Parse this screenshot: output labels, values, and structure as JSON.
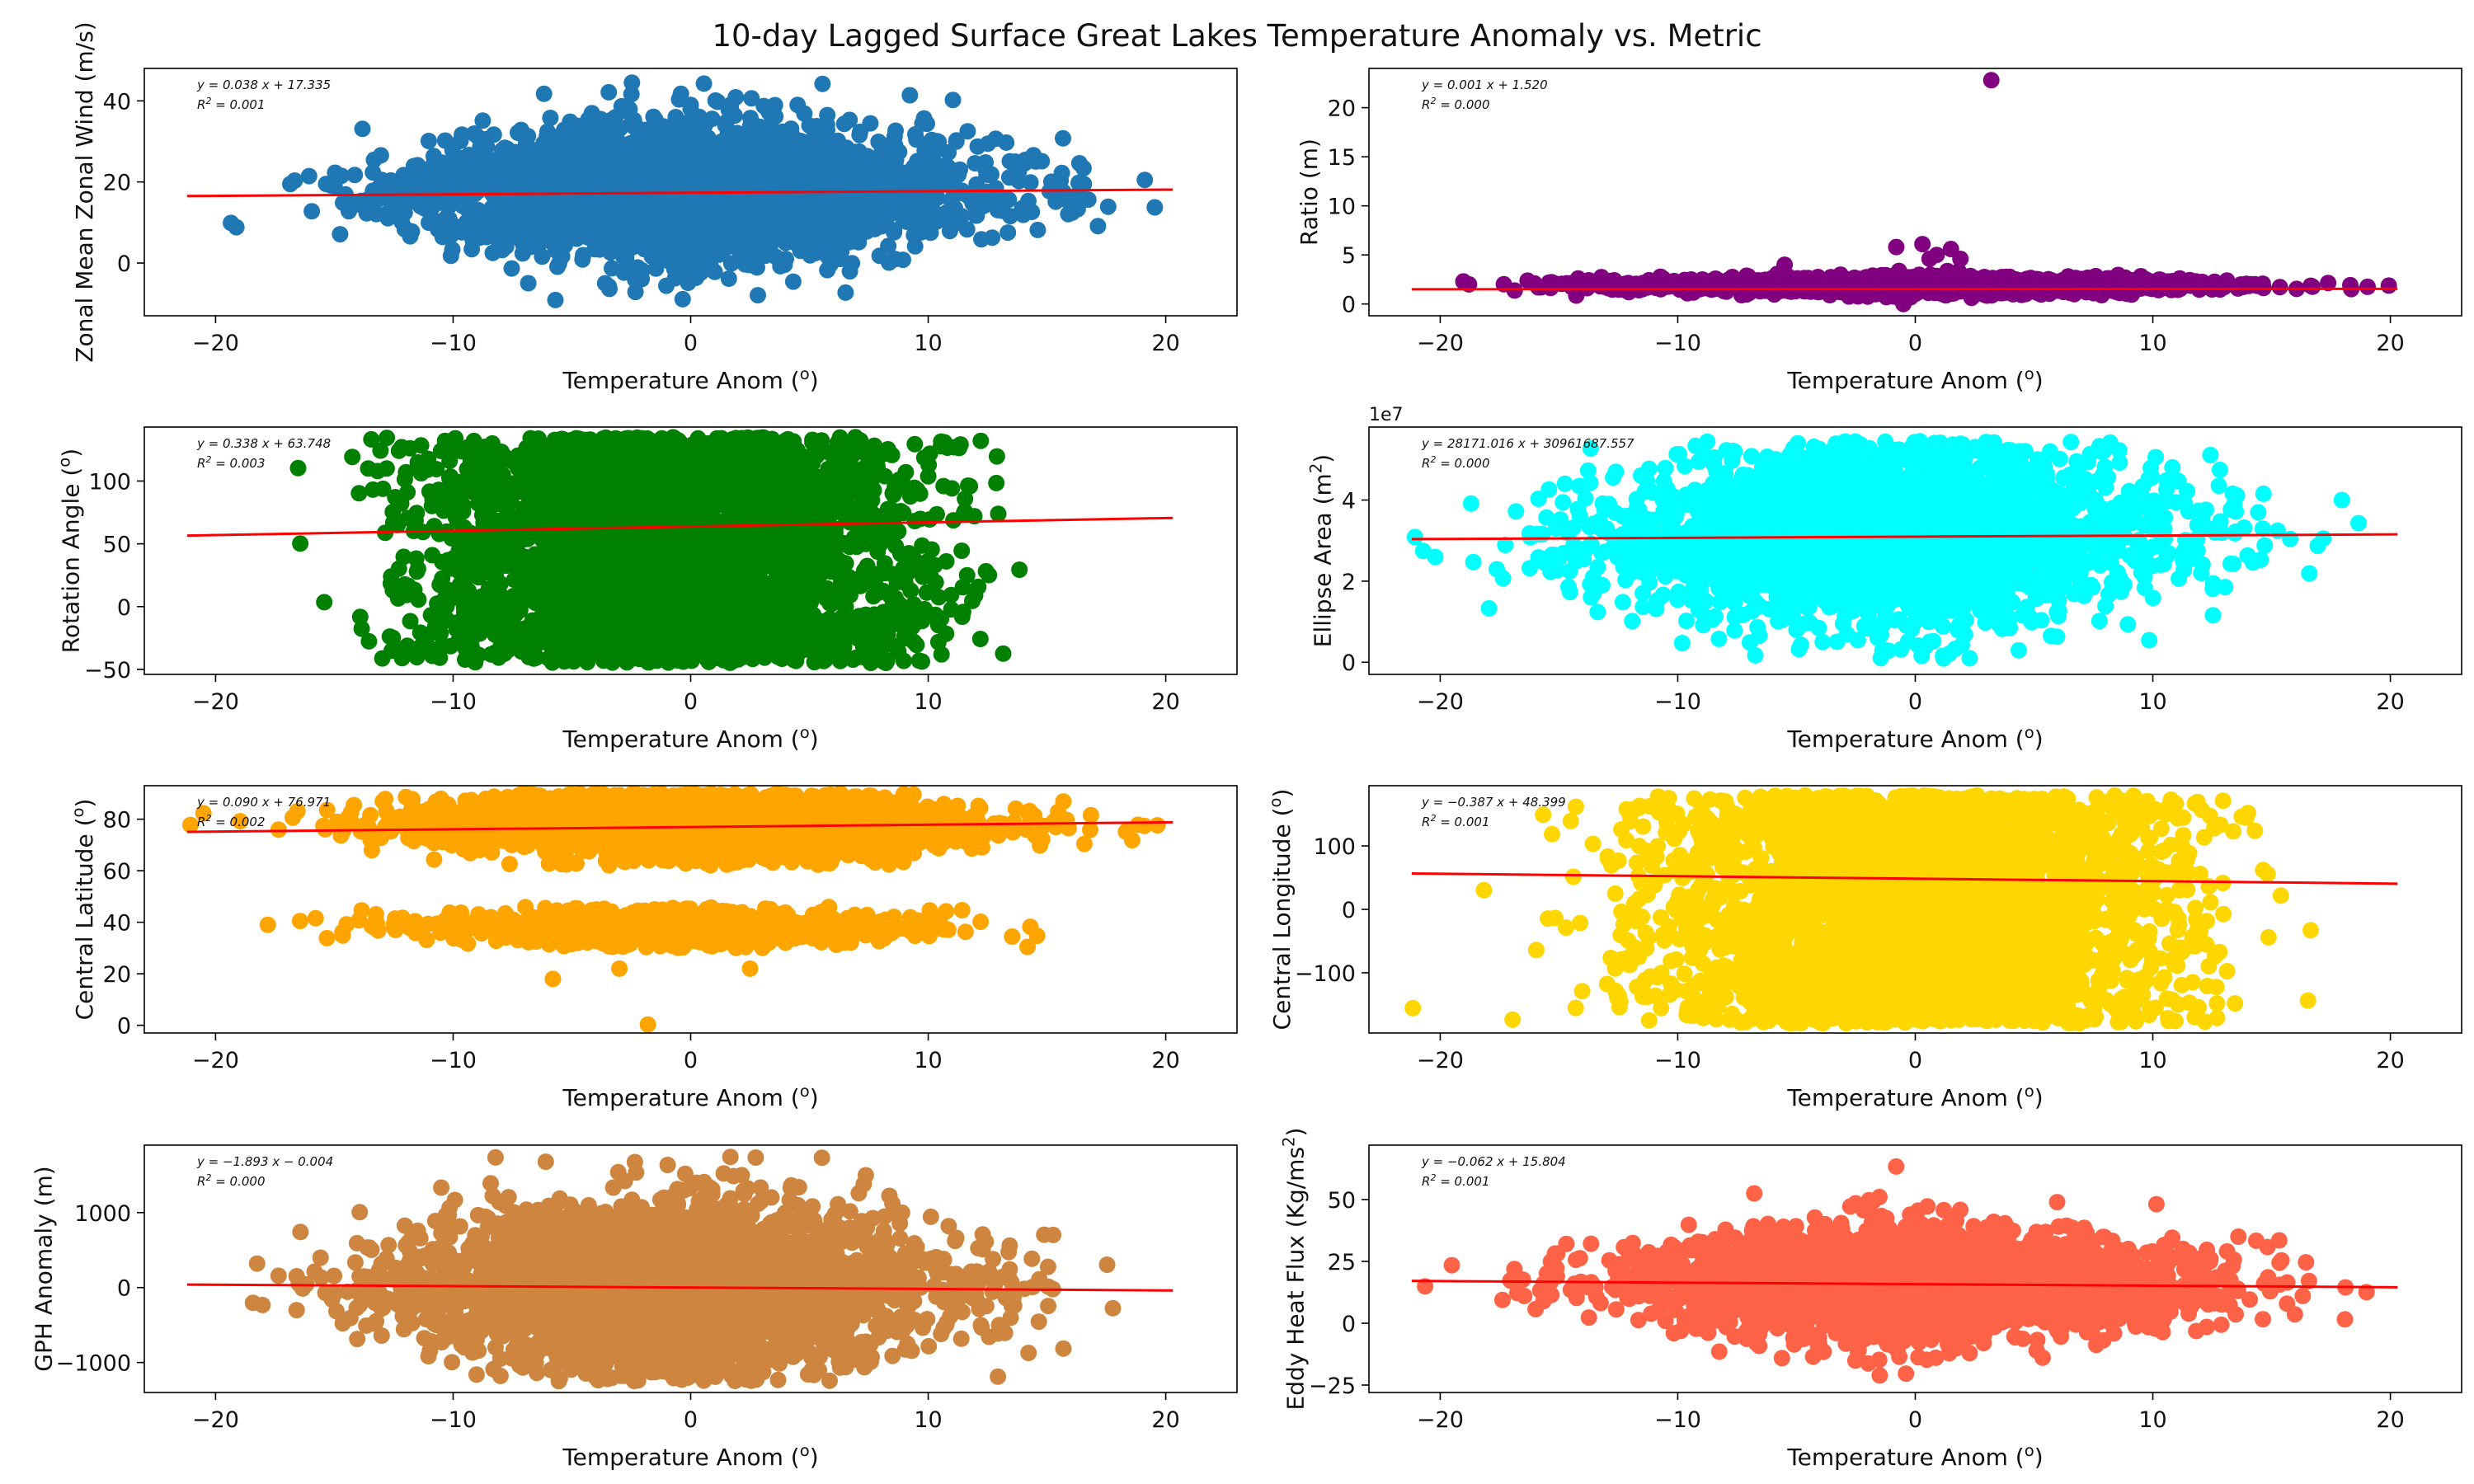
{
  "figure": {
    "title": "10-day Lagged Surface Great Lakes Temperature Anomaly vs. Metric"
  },
  "chart_data": [
    {
      "type": "scatter",
      "xlabel": "Temperature Anom ($^o$)",
      "xlabel_text": "Temperature Anom (",
      "xlabel_sup": "o",
      "xlabel_end": ")",
      "ylabel": "Zonal Mean Zonal Wind (m/s)",
      "xlim": [
        -23,
        23
      ],
      "ylim": [
        -13,
        48
      ],
      "xticks": [
        -20,
        -10,
        0,
        10,
        20
      ],
      "xtick_labels": [
        "−20",
        "−10",
        "0",
        "10",
        "20"
      ],
      "yticks": [
        0,
        20,
        40
      ],
      "ytick_labels": [
        "0",
        "20",
        "40"
      ],
      "color": "#1f77b4",
      "cloud": {
        "x_mean": 0,
        "x_sd": 5.8,
        "y_mean": 17.5,
        "y_sd": 9,
        "y_min": -10,
        "y_max": 46.5,
        "n": 2800
      },
      "fit": {
        "slope": 0.038,
        "intercept": 17.335,
        "x_range": [
          -21.2,
          20.3
        ]
      },
      "annotation": {
        "eq": "y = 0.038 x + 17.335",
        "r2_label": "R",
        "r2_value": " = 0.001"
      }
    },
    {
      "type": "scatter",
      "xlabel": "Temperature Anom ($^o$)",
      "xlabel_text": "Temperature Anom (",
      "xlabel_sup": "o",
      "xlabel_end": ")",
      "ylabel": "Ratio (m)",
      "xlim": [
        -23,
        23
      ],
      "ylim": [
        -1.2,
        24
      ],
      "xticks": [
        -20,
        -10,
        0,
        10,
        20
      ],
      "xtick_labels": [
        "−20",
        "−10",
        "0",
        "10",
        "20"
      ],
      "yticks": [
        0,
        5,
        10,
        15,
        20
      ],
      "ytick_labels": [
        "0",
        "5",
        "10",
        "15",
        "20"
      ],
      "color": "#800080",
      "cloud": {
        "x_mean": 0,
        "x_sd": 5.8,
        "y_mean": 1.9,
        "y_sd": 0.45,
        "y_min": 0.6,
        "y_max": 3.6,
        "n": 2200
      },
      "outliers": [
        {
          "x": 3.2,
          "y": 22.8
        },
        {
          "x": 0.3,
          "y": 6.1
        },
        {
          "x": -0.8,
          "y": 5.8
        },
        {
          "x": 1.5,
          "y": 5.6
        },
        {
          "x": 0.9,
          "y": 5.0
        },
        {
          "x": 1.9,
          "y": 4.6
        },
        {
          "x": -5.5,
          "y": 4.0
        },
        {
          "x": 0.6,
          "y": 4.6
        },
        {
          "x": -0.5,
          "y": 0.0
        }
      ],
      "fit": {
        "slope": 0.001,
        "intercept": 1.52,
        "x_range": [
          -21.2,
          20.3
        ]
      },
      "annotation": {
        "eq": "y = 0.001 x + 1.520",
        "r2_label": "R",
        "r2_value": " = 0.000"
      }
    },
    {
      "type": "scatter",
      "xlabel": "Temperature Anom ($^o$)",
      "xlabel_text": "Temperature Anom (",
      "xlabel_sup": "o",
      "xlabel_end": ")",
      "ylabel": "Rotation Angle ($^o$)",
      "ylabel_text": "Rotation Angle (",
      "ylabel_sup": "o",
      "ylabel_end": ")",
      "xlim": [
        -23,
        23
      ],
      "ylim": [
        -54,
        143
      ],
      "xticks": [
        -20,
        -10,
        0,
        10,
        20
      ],
      "xtick_labels": [
        "−20",
        "−10",
        "0",
        "10",
        "20"
      ],
      "yticks": [
        -50,
        0,
        50,
        100
      ],
      "ytick_labels": [
        "−50",
        "0",
        "50",
        "100"
      ],
      "color": "#008000",
      "cloud": {
        "x_mean": -1,
        "x_sd": 5.5,
        "y_mean": 45,
        "y_sd": 60,
        "y_min": -45,
        "y_max": 135,
        "n": 3200,
        "uniform_y": true
      },
      "fit": {
        "slope": 0.338,
        "intercept": 63.748,
        "x_range": [
          -21.2,
          20.3
        ]
      },
      "annotation": {
        "eq": "y = 0.338 x + 63.748",
        "r2_label": "R",
        "r2_value": " = 0.003"
      }
    },
    {
      "type": "scatter",
      "xlabel": "Temperature Anom ($^o$)",
      "xlabel_text": "Temperature Anom (",
      "xlabel_sup": "o",
      "xlabel_end": ")",
      "ylabel": "Ellipse Area (m$^2$)",
      "ylabel_text": "Ellipse Area (m",
      "ylabel_sup": "2",
      "ylabel_end": ")",
      "axis_offset_label": "1e7",
      "xlim": [
        -23,
        23
      ],
      "ylim": [
        -0.3,
        5.8
      ],
      "xticks": [
        -20,
        -10,
        0,
        10,
        20
      ],
      "xtick_labels": [
        "−20",
        "−10",
        "0",
        "10",
        "20"
      ],
      "yticks": [
        0,
        2,
        4
      ],
      "ytick_labels": [
        "0",
        "2",
        "4"
      ],
      "color": "#00ffff",
      "cloud": {
        "x_mean": -1,
        "x_sd": 5.8,
        "y_mean": 3.1,
        "y_sd": 1.2,
        "y_min": 0.05,
        "y_max": 5.45,
        "n": 2800
      },
      "fit": {
        "slope": 0.0028171016,
        "intercept": 3.0961687557,
        "x_range": [
          -21.2,
          20.3
        ]
      },
      "annotation": {
        "eq": "y = 28171.016 x + 30961687.557",
        "r2_label": "R",
        "r2_value": " = 0.000"
      }
    },
    {
      "type": "scatter",
      "xlabel": "Temperature Anom ($^o$)",
      "xlabel_text": "Temperature Anom (",
      "xlabel_sup": "o",
      "xlabel_end": ")",
      "ylabel": "Central Latitude ($^o$)",
      "ylabel_text": "Central Latitude (",
      "ylabel_sup": "o",
      "ylabel_end": ")",
      "xlim": [
        -23,
        23
      ],
      "ylim": [
        -3,
        93
      ],
      "xticks": [
        -20,
        -10,
        0,
        10,
        20
      ],
      "xtick_labels": [
        "−20",
        "−10",
        "0",
        "10",
        "20"
      ],
      "yticks": [
        0,
        20,
        40,
        60,
        80
      ],
      "ytick_labels": [
        "0",
        "20",
        "40",
        "60",
        "80"
      ],
      "color": "#ffa500",
      "cloud": {
        "x_mean": 0,
        "x_sd": 5.8,
        "y_mean": 78,
        "y_sd": 7,
        "y_min": 62,
        "y_max": 90,
        "n": 2600
      },
      "cloud2": {
        "x_mean": -1,
        "x_sd": 5.5,
        "y_mean": 38,
        "y_sd": 4,
        "y_min": 30,
        "y_max": 46,
        "n": 700
      },
      "outliers": [
        {
          "x": -1.8,
          "y": 0.3
        },
        {
          "x": -5.8,
          "y": 18
        },
        {
          "x": -3,
          "y": 22
        },
        {
          "x": 2.5,
          "y": 22
        },
        {
          "x": -17.8,
          "y": 39
        }
      ],
      "fit": {
        "slope": 0.09,
        "intercept": 76.971,
        "x_range": [
          -21.2,
          20.3
        ]
      },
      "annotation": {
        "eq": "y = 0.090 x + 76.971",
        "r2_label": "R",
        "r2_value": " = 0.002"
      }
    },
    {
      "type": "scatter",
      "xlabel": "Temperature Anom ($^o$)",
      "xlabel_text": "Temperature Anom (",
      "xlabel_sup": "o",
      "xlabel_end": ")",
      "ylabel": "Central Longitude ($^o$)",
      "ylabel_text": "Central Longitude (",
      "ylabel_sup": "o",
      "ylabel_end": ")",
      "xlim": [
        -23,
        23
      ],
      "ylim": [
        -195,
        195
      ],
      "xticks": [
        -20,
        -10,
        0,
        10,
        20
      ],
      "xtick_labels": [
        "−20",
        "−10",
        "0",
        "10",
        "20"
      ],
      "yticks": [
        -100,
        0,
        100
      ],
      "ytick_labels": [
        "−100",
        "0",
        "100"
      ],
      "color": "#ffd700",
      "cloud": {
        "x_mean": 0,
        "x_sd": 5.8,
        "y_mean": 40,
        "y_sd": 100,
        "y_min": -180,
        "y_max": 180,
        "n": 3200,
        "uniform_y": true
      },
      "fit": {
        "slope": -0.387,
        "intercept": 48.399,
        "x_range": [
          -21.2,
          20.3
        ]
      },
      "annotation": {
        "eq": "y = −0.387 x + 48.399",
        "r2_label": "R",
        "r2_value": " = 0.001"
      }
    },
    {
      "type": "scatter",
      "xlabel": "Temperature Anom ($^o$)",
      "xlabel_text": "Temperature Anom (",
      "xlabel_sup": "o",
      "xlabel_end": ")",
      "ylabel": "GPH Anomaly (m)",
      "xlim": [
        -23,
        23
      ],
      "ylim": [
        -1400,
        1900
      ],
      "xticks": [
        -20,
        -10,
        0,
        10,
        20
      ],
      "xtick_labels": [
        "−20",
        "−10",
        "0",
        "10",
        "20"
      ],
      "yticks": [
        -1000,
        0,
        1000
      ],
      "ytick_labels": [
        "−1000",
        "0",
        "1000"
      ],
      "color": "#cd853f",
      "cloud": {
        "x_mean": -1,
        "x_sd": 5.8,
        "y_mean": 0,
        "y_sd": 600,
        "y_min": -1250,
        "y_max": 1750,
        "n": 3000
      },
      "fit": {
        "slope": -1.893,
        "intercept": -0.004,
        "x_range": [
          -21.2,
          20.3
        ]
      },
      "annotation": {
        "eq": "y = −1.893 x − 0.004",
        "r2_label": "R",
        "r2_value": " = 0.000"
      }
    },
    {
      "type": "scatter",
      "xlabel": "Temperature Anom ($^o$)",
      "xlabel_text": "Temperature Anom (",
      "xlabel_sup": "o",
      "xlabel_end": ")",
      "ylabel": "Eddy Heat Flux (Kg/ms$^2$)",
      "ylabel_text": "Eddy Heat Flux (Kg/ms",
      "ylabel_sup": "2",
      "ylabel_end": ")",
      "xlim": [
        -23,
        23
      ],
      "ylim": [
        -28,
        72
      ],
      "xticks": [
        -20,
        -10,
        0,
        10,
        20
      ],
      "xtick_labels": [
        "−20",
        "−10",
        "0",
        "10",
        "20"
      ],
      "yticks": [
        -25,
        0,
        25,
        50
      ],
      "ytick_labels": [
        "−25",
        "0",
        "25",
        "50"
      ],
      "color": "#ff6347",
      "cloud": {
        "x_mean": 0,
        "x_sd": 5.8,
        "y_mean": 16,
        "y_sd": 12,
        "y_min": -22,
        "y_max": 70,
        "n": 2600
      },
      "fit": {
        "slope": -0.062,
        "intercept": 15.804,
        "x_range": [
          -21.2,
          20.3
        ]
      },
      "annotation": {
        "eq": "y = −0.062 x + 15.804",
        "r2_label": "R",
        "r2_value": " = 0.001"
      }
    }
  ]
}
